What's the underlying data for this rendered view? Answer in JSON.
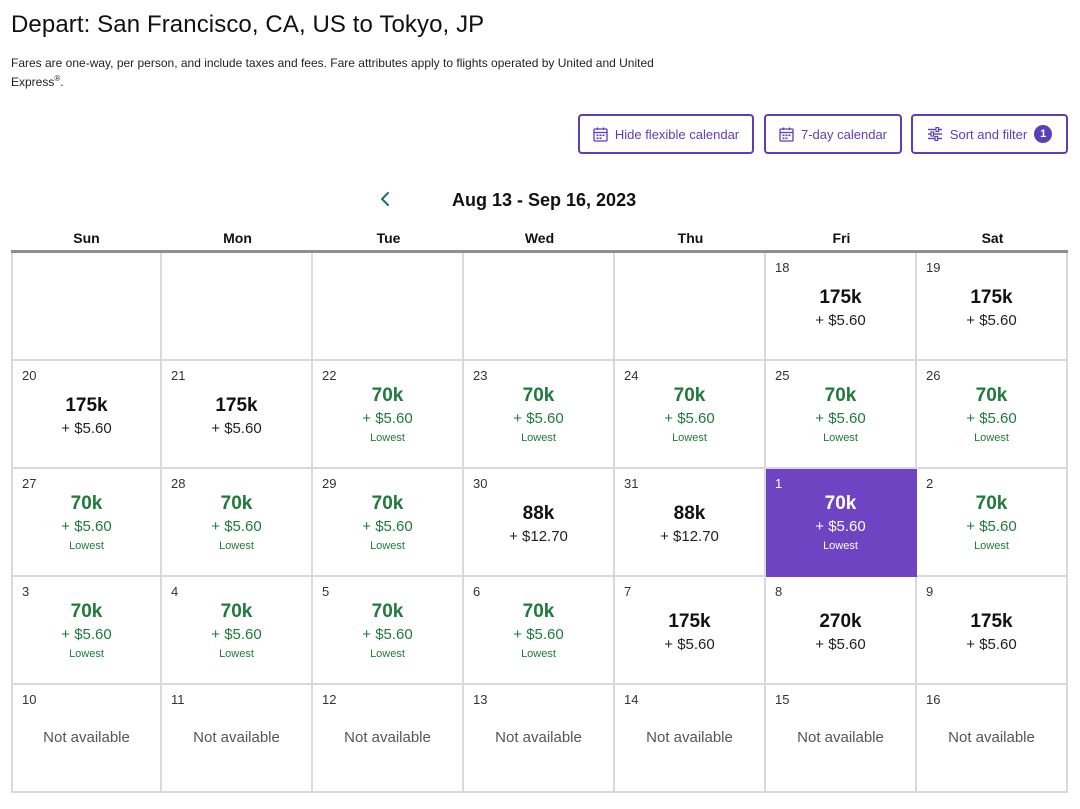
{
  "header": {
    "title": "Depart: San Francisco, CA, US to Tokyo, JP",
    "subtitle": "Fares are one-way, per person, and include taxes and fees. Fare attributes apply to flights operated by United and United Express",
    "subtitle_mark": "®",
    "subtitle_end": "."
  },
  "toolbar": {
    "flexible_label": "Hide flexible calendar",
    "seven_day_label": "7-day calendar",
    "sort_label": "Sort and filter",
    "filter_count": "1"
  },
  "calendar": {
    "range": "Aug 13 - Sep 16, 2023",
    "weekdays": [
      "Sun",
      "Mon",
      "Tue",
      "Wed",
      "Thu",
      "Fri",
      "Sat"
    ],
    "accent_color": "#6e44c3",
    "lowest_color": "#1f7a3c",
    "weeks": [
      [
        {
          "type": "empty"
        },
        {
          "type": "empty"
        },
        {
          "type": "empty"
        },
        {
          "type": "empty"
        },
        {
          "type": "empty"
        },
        {
          "day": "18",
          "price": "175k",
          "fees": "+ $5.60"
        },
        {
          "day": "19",
          "price": "175k",
          "fees": "+ $5.60"
        }
      ],
      [
        {
          "day": "20",
          "price": "175k",
          "fees": "+ $5.60"
        },
        {
          "day": "21",
          "price": "175k",
          "fees": "+ $5.60"
        },
        {
          "day": "22",
          "price": "70k",
          "fees": "+ $5.60",
          "tag": "Lowest"
        },
        {
          "day": "23",
          "price": "70k",
          "fees": "+ $5.60",
          "tag": "Lowest"
        },
        {
          "day": "24",
          "price": "70k",
          "fees": "+ $5.60",
          "tag": "Lowest"
        },
        {
          "day": "25",
          "price": "70k",
          "fees": "+ $5.60",
          "tag": "Lowest"
        },
        {
          "day": "26",
          "price": "70k",
          "fees": "+ $5.60",
          "tag": "Lowest"
        }
      ],
      [
        {
          "day": "27",
          "price": "70k",
          "fees": "+ $5.60",
          "tag": "Lowest"
        },
        {
          "day": "28",
          "price": "70k",
          "fees": "+ $5.60",
          "tag": "Lowest"
        },
        {
          "day": "29",
          "price": "70k",
          "fees": "+ $5.60",
          "tag": "Lowest"
        },
        {
          "day": "30",
          "price": "88k",
          "fees": "+ $12.70"
        },
        {
          "day": "31",
          "price": "88k",
          "fees": "+ $12.70"
        },
        {
          "day": "1",
          "price": "70k",
          "fees": "+ $5.60",
          "tag": "Lowest",
          "selected": true
        },
        {
          "day": "2",
          "price": "70k",
          "fees": "+ $5.60",
          "tag": "Lowest"
        }
      ],
      [
        {
          "day": "3",
          "price": "70k",
          "fees": "+ $5.60",
          "tag": "Lowest"
        },
        {
          "day": "4",
          "price": "70k",
          "fees": "+ $5.60",
          "tag": "Lowest"
        },
        {
          "day": "5",
          "price": "70k",
          "fees": "+ $5.60",
          "tag": "Lowest"
        },
        {
          "day": "6",
          "price": "70k",
          "fees": "+ $5.60",
          "tag": "Lowest"
        },
        {
          "day": "7",
          "price": "175k",
          "fees": "+ $5.60"
        },
        {
          "day": "8",
          "price": "270k",
          "fees": "+ $5.60"
        },
        {
          "day": "9",
          "price": "175k",
          "fees": "+ $5.60"
        }
      ],
      [
        {
          "day": "10",
          "status": "Not available"
        },
        {
          "day": "11",
          "status": "Not available"
        },
        {
          "day": "12",
          "status": "Not available"
        },
        {
          "day": "13",
          "status": "Not available"
        },
        {
          "day": "14",
          "status": "Not available"
        },
        {
          "day": "15",
          "status": "Not available"
        },
        {
          "day": "16",
          "status": "Not available"
        }
      ]
    ]
  },
  "icons": {
    "calendar": "calendar-icon",
    "filter": "sliders-icon",
    "previous": "chevron-left-icon"
  }
}
